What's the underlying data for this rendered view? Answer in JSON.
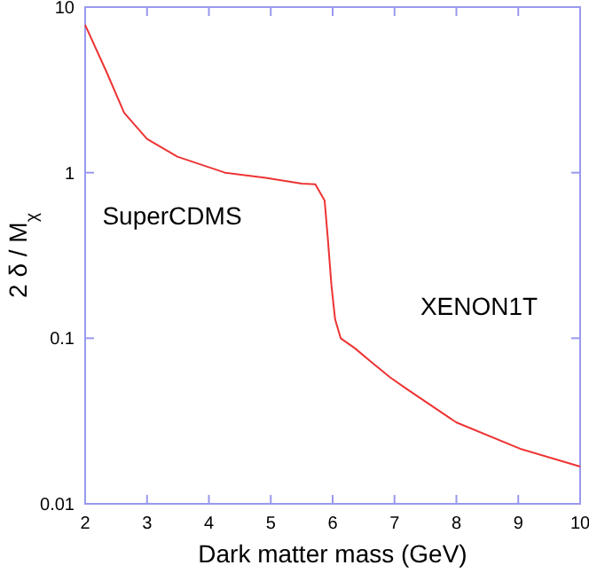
{
  "chart_data": {
    "type": "line",
    "xlabel": "Dark matter mass (GeV)",
    "ylabel": "2 δ / M$_{χ}$",
    "log": "y",
    "xlim": [
      2,
      10
    ],
    "ylim": [
      0.01,
      10
    ],
    "xticks": [
      2,
      3,
      4,
      5,
      6,
      7,
      8,
      9,
      10
    ],
    "yticks": [
      0.01,
      0.1,
      1,
      10
    ],
    "grid": false,
    "marker": "none",
    "line_style": "solid",
    "series": [
      {
        "color": "#ee3333",
        "x": [
          2,
          2.34,
          2.63,
          3.0,
          3.49,
          4.26,
          4.92,
          5.5,
          5.72,
          5.87,
          5.92,
          5.98,
          6.04,
          6.13,
          6.36,
          6.64,
          6.93,
          7.21,
          8.0,
          9.03,
          10
        ],
        "values": [
          7.8,
          4.1,
          2.3,
          1.6,
          1.25,
          1.0,
          0.93,
          0.86,
          0.85,
          0.68,
          0.41,
          0.21,
          0.13,
          0.1,
          0.087,
          0.071,
          0.058,
          0.049,
          0.031,
          0.0215,
          0.0168
        ]
      }
    ],
    "annotations": [
      "SuperCDMS",
      "XENON1T"
    ]
  }
}
